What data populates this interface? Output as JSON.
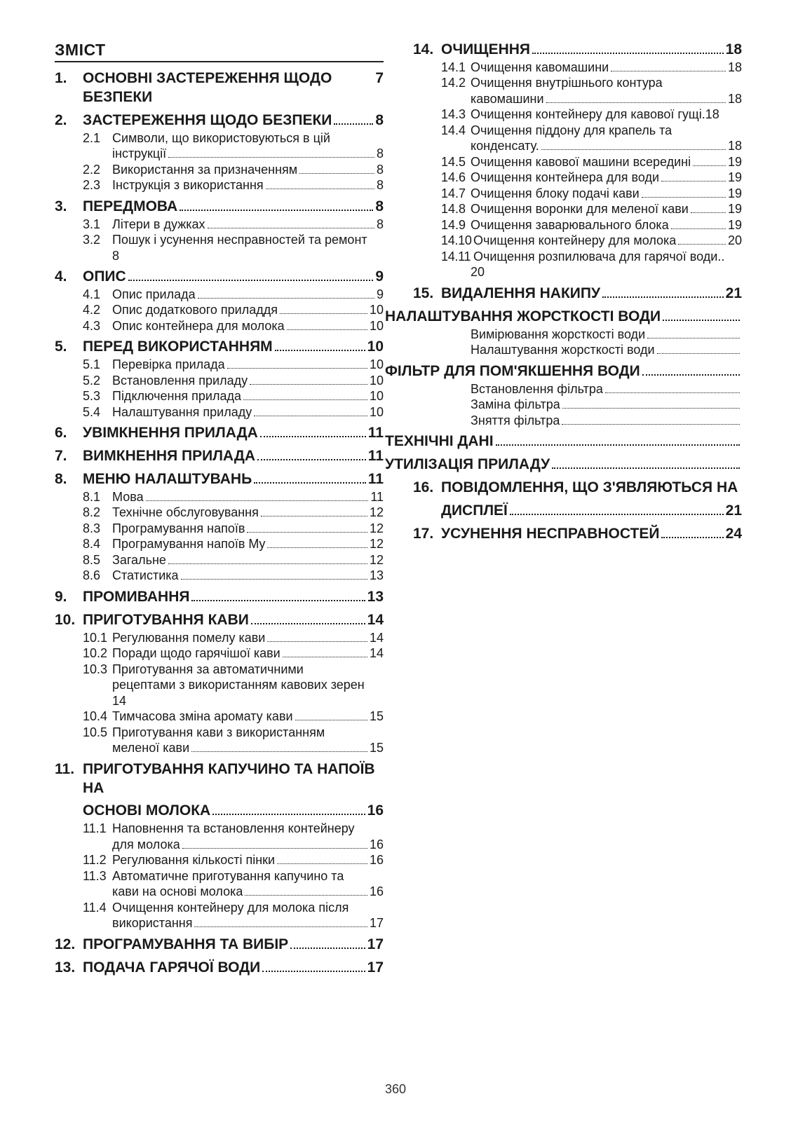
{
  "doc": {
    "toc_title": "ЗМІСТ",
    "page_number": "360"
  },
  "sections": [
    {
      "num": "1.",
      "title": "ОСНОВНІ ЗАСТЕРЕЖЕННЯ ЩОДО БЕЗПЕКИ",
      "page": "7",
      "no_leader": true,
      "nbsp_before_pg": true,
      "subs": []
    },
    {
      "num": "2.",
      "title": "ЗАСТЕРЕЖЕННЯ ЩОДО БЕЗПЕКИ",
      "page": "8",
      "subs": [
        {
          "num": "2.1",
          "lines": [
            "Символи, що використовуються в цій",
            "інструкції"
          ],
          "page": "8"
        },
        {
          "num": "2.2",
          "lines": [
            "Використання за призначенням"
          ],
          "page": "8"
        },
        {
          "num": "2.3",
          "lines": [
            "Інструкція з використання"
          ],
          "page": "8"
        }
      ]
    },
    {
      "num": "3.",
      "title": "ПЕРЕДМОВА",
      "page": "8",
      "subs": [
        {
          "num": "3.1",
          "lines": [
            "Літери в дужках"
          ],
          "page": "8"
        },
        {
          "num": "3.2",
          "lines": [
            "Пошук і усунення несправностей та ремонт"
          ],
          "page_below": "8"
        }
      ]
    },
    {
      "num": "4.",
      "title": "ОПИС",
      "page": "9",
      "subs": [
        {
          "num": "4.1",
          "lines": [
            "Опис прилада"
          ],
          "page": "9"
        },
        {
          "num": "4.2",
          "lines": [
            "Опис додаткового приладдя"
          ],
          "page": "10"
        },
        {
          "num": "4.3",
          "lines": [
            "Опис контейнера для молока"
          ],
          "page": "10"
        }
      ]
    },
    {
      "num": "5.",
      "title": "ПЕРЕД ВИКОРИСТАННЯМ",
      "page": "10",
      "subs": [
        {
          "num": "5.1",
          "lines": [
            "Перевірка прилада"
          ],
          "page": "10"
        },
        {
          "num": "5.2",
          "lines": [
            "Встановлення приладу"
          ],
          "page": "10"
        },
        {
          "num": "5.3",
          "lines": [
            "Підключення прилада"
          ],
          "page": "10"
        },
        {
          "num": "5.4",
          "lines": [
            "Налаштування приладу"
          ],
          "page": "10"
        }
      ]
    },
    {
      "num": "6.",
      "title": "УВІМКНЕННЯ ПРИЛАДА",
      "page": "11",
      "subs": []
    },
    {
      "num": "7.",
      "title": "ВИМКНЕННЯ ПРИЛАДА",
      "page": "11",
      "subs": []
    },
    {
      "num": "8.",
      "title": "МЕНЮ НАЛАШТУВАНЬ",
      "page": "11",
      "subs": [
        {
          "num": "8.1",
          "lines": [
            "Мова"
          ],
          "page": "11"
        },
        {
          "num": "8.2",
          "lines": [
            "Технічне обслуговування"
          ],
          "page": "12"
        },
        {
          "num": "8.3",
          "lines": [
            "Програмування напоїв"
          ],
          "page": "12"
        },
        {
          "num": "8.4",
          "lines": [
            "Програмування напоїв My"
          ],
          "page": "12"
        },
        {
          "num": "8.5",
          "lines": [
            "Загальне"
          ],
          "page": "12"
        },
        {
          "num": "8.6",
          "lines": [
            "Статистика"
          ],
          "page": "13"
        }
      ]
    },
    {
      "num": "9.",
      "title": "ПРОМИВАННЯ",
      "page": "13",
      "subs": []
    },
    {
      "num": "10.",
      "title": "ПРИГОТУВАННЯ КАВИ",
      "page": "14",
      "subs": [
        {
          "num": "10.1",
          "lines": [
            "Регулювання помелу кави"
          ],
          "page": "14"
        },
        {
          "num": "10.2",
          "lines": [
            "Поради щодо гарячішої кави"
          ],
          "page": "14"
        },
        {
          "num": "10.3",
          "lines": [
            "Приготування за автоматичними",
            "рецептами з використанням кавових зерен"
          ],
          "page_below": "14"
        },
        {
          "num": "10.4",
          "lines": [
            "Тимчасова зміна аромату кави"
          ],
          "page": "15"
        },
        {
          "num": "10.5",
          "lines": [
            "Приготування кави з використанням",
            "меленої кави"
          ],
          "page": "15"
        }
      ]
    },
    {
      "num": "11.",
      "title_lines": [
        "ПРИГОТУВАННЯ КАПУЧИНО ТА НАПОЇВ НА",
        "ОСНОВІ МОЛОКА"
      ],
      "page": "16",
      "allow_break": true,
      "subs": [
        {
          "num": "11.1",
          "lines": [
            "Наповнення та встановлення контейнеру",
            "для молока"
          ],
          "page": "16"
        },
        {
          "num": "11.2",
          "lines": [
            "Регулювання кількості пінки"
          ],
          "page": "16"
        },
        {
          "num": "11.3",
          "lines": [
            "Автоматичне приготування капучино та",
            "кави на основі молока"
          ],
          "page": "16"
        },
        {
          "num": "11.4",
          "lines": [
            "Очищення контейнеру для молока після",
            "використання"
          ],
          "page": "17"
        }
      ]
    },
    {
      "num": "12.",
      "title": "ПРОГРАМУВАННЯ ТА ВИБІР",
      "page": "17",
      "subs": []
    },
    {
      "num": "13.",
      "title": "ПОДАЧА ГАРЯЧОЇ ВОДИ",
      "page": "17",
      "subs": []
    },
    {
      "num": "14.",
      "title": "ОЧИЩЕННЯ",
      "page": "18",
      "subs": [
        {
          "num": "14.1",
          "lines": [
            "Очищення кавомашини"
          ],
          "page": "18"
        },
        {
          "num": "14.2",
          "lines": [
            "Очищення внутрішнього контура",
            "кавомашини"
          ],
          "page": "18"
        },
        {
          "num": "14.3",
          "lines": [
            "Очищення контейнеру для кавової гущі"
          ],
          "page": "18",
          "tight": true
        },
        {
          "num": "14.4",
          "lines": [
            "Очищення піддону для крапель та",
            "конденсату."
          ],
          "page": "18"
        },
        {
          "num": "14.5",
          "lines": [
            "Очищення кавової машини всередині"
          ],
          "page": "19"
        },
        {
          "num": "14.6",
          "lines": [
            "Очищення контейнера для води"
          ],
          "page": "19"
        },
        {
          "num": "14.7",
          "lines": [
            "Очищення блоку подачі кави"
          ],
          "page": "19"
        },
        {
          "num": "14.8",
          "lines": [
            "Очищення воронки для меленої кави"
          ],
          "page": "19"
        },
        {
          "num": "14.9",
          "lines": [
            "Очищення заварювального блока"
          ],
          "page": "19"
        },
        {
          "num": "14.10",
          "lines": [
            "Очищення контейнеру для молока"
          ],
          "page": "20",
          "tight_num": true
        },
        {
          "num": "14.11",
          "lines": [
            "Очищення розпилювача для гарячої води"
          ],
          "page_below": "20",
          "tight_num": true,
          "trailing_dots": true
        }
      ]
    },
    {
      "num": "15.",
      "title": "ВИДАЛЕННЯ НАКИПУ",
      "page": "21",
      "subs": []
    },
    {
      "num": "",
      "title": "НАЛАШТУВАННЯ ЖОРСТКОСТІ ВОДИ",
      "page": "",
      "trailing_only": true,
      "flush_left": true,
      "subs": [
        {
          "num": "",
          "lines": [
            "Вимірювання жорсткості води"
          ],
          "page": "",
          "trailing_only": true
        },
        {
          "num": "",
          "lines": [
            "Налаштування жорсткості води"
          ],
          "page": "",
          "trailing_only": true
        }
      ]
    },
    {
      "num": "",
      "title": "ФІЛЬТР ДЛЯ ПОМ'ЯКШЕННЯ ВОДИ",
      "page": "",
      "trailing_only": true,
      "flush_left": true,
      "subs": [
        {
          "num": "",
          "lines": [
            "Встановлення фільтра"
          ],
          "page": "",
          "trailing_only": true
        },
        {
          "num": "",
          "lines": [
            "Заміна фільтра"
          ],
          "page": "",
          "trailing_only": true
        },
        {
          "num": "",
          "lines": [
            "Зняття фільтра"
          ],
          "page": "",
          "trailing_only": true
        }
      ]
    },
    {
      "num": "",
      "title": "ТЕХНІЧНІ ДАНІ",
      "page": "",
      "trailing_only": true,
      "flush_left": true,
      "subs": []
    },
    {
      "num": "",
      "title": "УТИЛІЗАЦІЯ ПРИЛАДУ",
      "page": "",
      "trailing_only": true,
      "flush_left": true,
      "subs": []
    },
    {
      "num": "16.",
      "title_lines": [
        "ПОВІДОМЛЕННЯ, ЩО З'ЯВЛЯЮТЬСЯ НА",
        "ДИСПЛЕЇ"
      ],
      "page": "21",
      "subs": []
    },
    {
      "num": "17.",
      "title": "УСУНЕННЯ НЕСПРАВНОСТЕЙ",
      "page": "24",
      "subs": []
    }
  ]
}
